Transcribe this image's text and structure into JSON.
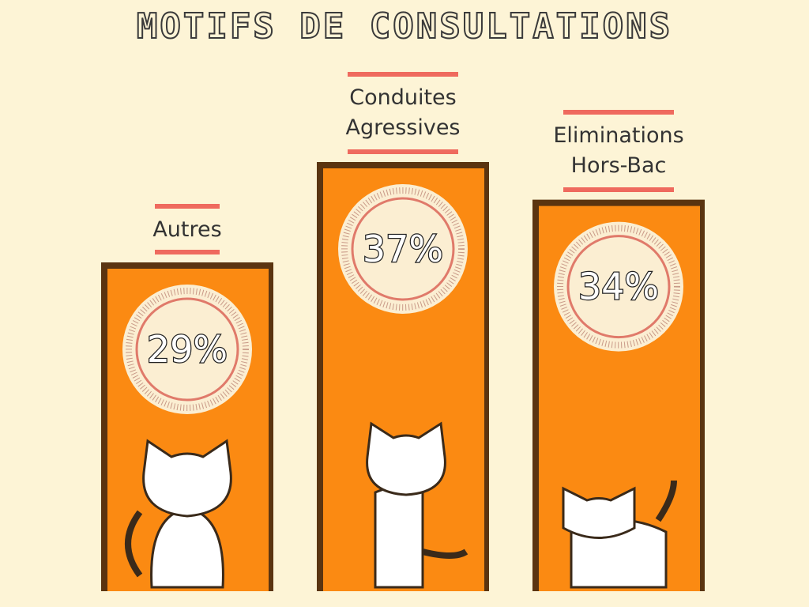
{
  "chart_data": {
    "type": "bar",
    "title": "MOTIFS DE CONSULTATIONS",
    "categories": [
      "Autres",
      "Conduites Agressives",
      "Eliminations Hors-Bac"
    ],
    "category_lines": [
      [
        "Autres"
      ],
      [
        "Conduites",
        "Agressives"
      ],
      [
        "Eliminations",
        "Hors-Bac"
      ]
    ],
    "values": [
      29,
      37,
      34
    ],
    "value_labels": [
      "29%",
      "37%",
      "34%"
    ],
    "unit": "%",
    "grid": false,
    "colors": {
      "bar": "#fb8a12",
      "bar_border": "#5a3410",
      "accent_line": "#ef6a5e",
      "badge": "#fbeed2",
      "background": "#fdf4d6"
    },
    "icons": [
      "cat-sitting-icon",
      "cat-standing-icon",
      "cat-back-icon"
    ]
  }
}
